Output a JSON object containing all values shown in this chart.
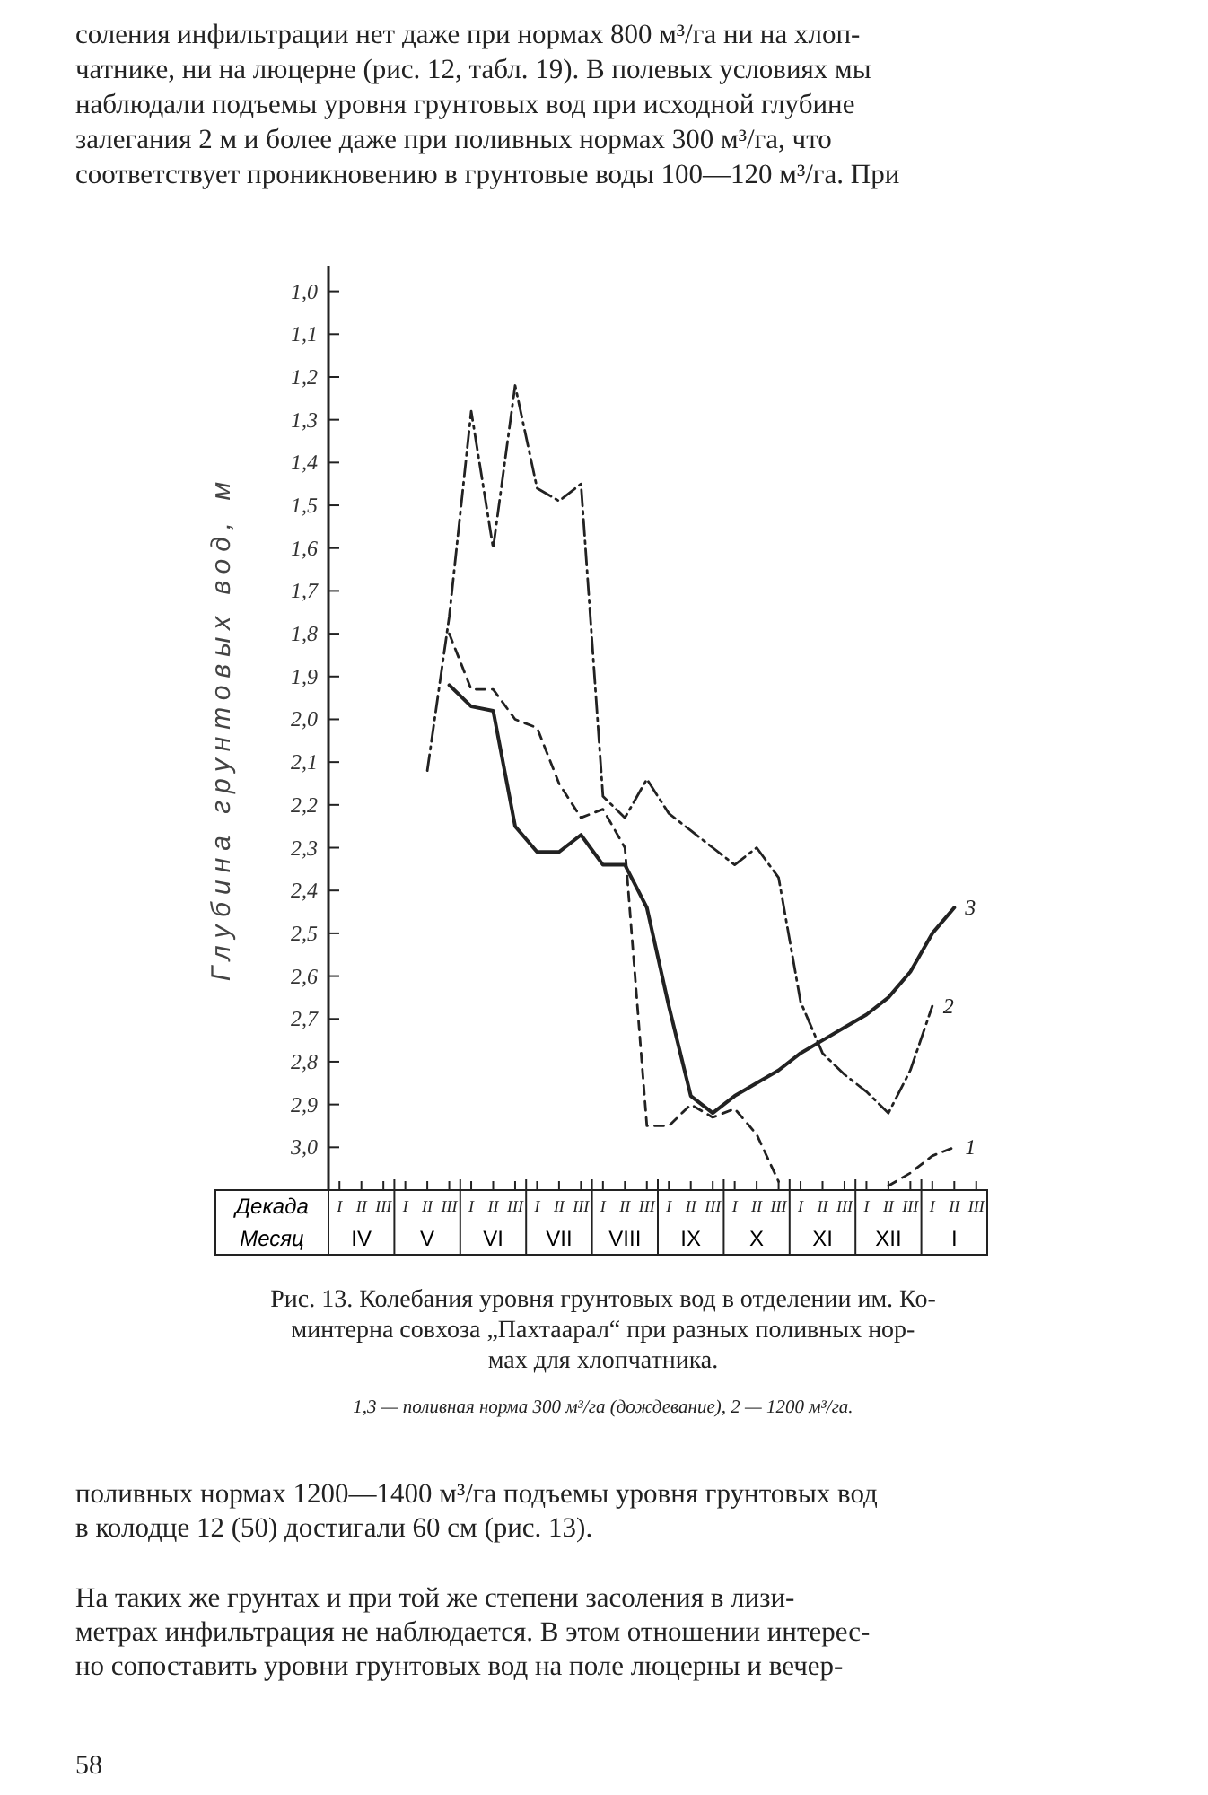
{
  "chart_data": {
    "type": "line",
    "title": "Рис. 13. Колебания уровня грунтовых вод в отделении им. Ко-\nминтерна совхоза „Пахтаарал“ при разных поливных нор-\nмах для хлопчатника.",
    "subtitle": "1,3 — поливная норма 300 м³/га (дождевание), 2 — 1200 м³/га.",
    "ylabel": "Глубина грунтовых вод, м",
    "categories": [
      "I",
      "II",
      "III",
      "I",
      "II",
      "III",
      "I",
      "II",
      "III",
      "I",
      "II",
      "III",
      "I",
      "II",
      "III",
      "I",
      "II",
      "III",
      "I",
      "II",
      "III",
      "I",
      "II",
      "III",
      "I",
      "II",
      "III",
      "I",
      "II",
      "III"
    ],
    "ylim": [
      3.1,
      0.94
    ],
    "yticks": [
      {
        "value": 1.0,
        "label": "1,0"
      },
      {
        "value": 1.1,
        "label": "1,1"
      },
      {
        "value": 1.2,
        "label": "1,2"
      },
      {
        "value": 1.3,
        "label": "1,3"
      },
      {
        "value": 1.4,
        "label": "1,4"
      },
      {
        "value": 1.5,
        "label": "1,5"
      },
      {
        "value": 1.6,
        "label": "1,6"
      },
      {
        "value": 1.7,
        "label": "1,7"
      },
      {
        "value": 1.8,
        "label": "1,8"
      },
      {
        "value": 1.9,
        "label": "1,9"
      },
      {
        "value": 2.0,
        "label": "2,0"
      },
      {
        "value": 2.1,
        "label": "2,1"
      },
      {
        "value": 2.2,
        "label": "2,2"
      },
      {
        "value": 2.3,
        "label": "2,3"
      },
      {
        "value": 2.4,
        "label": "2,4"
      },
      {
        "value": 2.5,
        "label": "2,5"
      },
      {
        "value": 2.6,
        "label": "2,6"
      },
      {
        "value": 2.7,
        "label": "2,7"
      },
      {
        "value": 2.8,
        "label": "2,8"
      },
      {
        "value": 2.9,
        "label": "2,9"
      },
      {
        "value": 3.0,
        "label": "3,0"
      }
    ],
    "marker": "none",
    "series": [
      {
        "name": "1",
        "color": "#222222",
        "line_style": "dashed",
        "values": [
          null,
          null,
          null,
          null,
          null,
          1.8,
          1.93,
          1.93,
          2.0,
          2.02,
          2.15,
          2.23,
          2.21,
          2.3,
          2.95,
          2.95,
          2.9,
          2.93,
          2.91,
          2.97,
          3.08,
          null,
          null,
          null,
          null,
          3.09,
          3.06,
          3.02,
          3.0,
          null
        ]
      },
      {
        "name": "2",
        "color": "#222222",
        "line_style": "dashdot",
        "values": [
          null,
          null,
          null,
          null,
          2.12,
          1.76,
          1.28,
          1.6,
          1.22,
          1.46,
          1.49,
          1.45,
          2.18,
          2.23,
          2.14,
          2.22,
          2.26,
          2.3,
          2.34,
          2.3,
          2.37,
          2.66,
          2.78,
          2.83,
          2.87,
          2.92,
          2.82,
          2.67,
          null,
          null
        ]
      },
      {
        "name": "3",
        "color": "#222222",
        "line_style": "solid",
        "values": [
          null,
          null,
          null,
          null,
          null,
          1.92,
          1.97,
          1.98,
          2.25,
          2.31,
          2.31,
          2.27,
          2.34,
          2.34,
          2.44,
          2.67,
          2.88,
          2.92,
          2.88,
          2.85,
          2.82,
          2.78,
          2.75,
          2.72,
          2.69,
          2.65,
          2.59,
          2.5,
          2.44,
          null
        ]
      }
    ],
    "annotations": [
      "соления инфильтрации нет даже при нормах 800 м³/га ни на хлоп-\nчатнике, ни на люцерне (рис. 12, табл. 19). В полевых условиях мы\nнаблюдали подъемы уровня грунтовых вод при исходной глубине\nзалегания 2 м и более даже при поливных нормах 300 м³/га, что\nсоответствует проникновению в грунтовые воды 100—120 м³/га. При",
      "Декада",
      "Месяц",
      "IV",
      "V",
      "VI",
      "VII",
      "VIII",
      "IX",
      "X",
      "XI",
      "XII",
      "I",
      "поливных нормах 1200—1400 м³/га подъемы уровня грунтовых вод\nв колодце 12 (50) достигали 60 см (рис. 13).",
      "На таких же грунтах и при той же степени засоления в лизи-\nметрах инфильтрация не наблюдается. В этом отношении интерес-\nно сопоставить уровни грунтовых вод на поле люцерны и вечер-",
      "58"
    ]
  }
}
